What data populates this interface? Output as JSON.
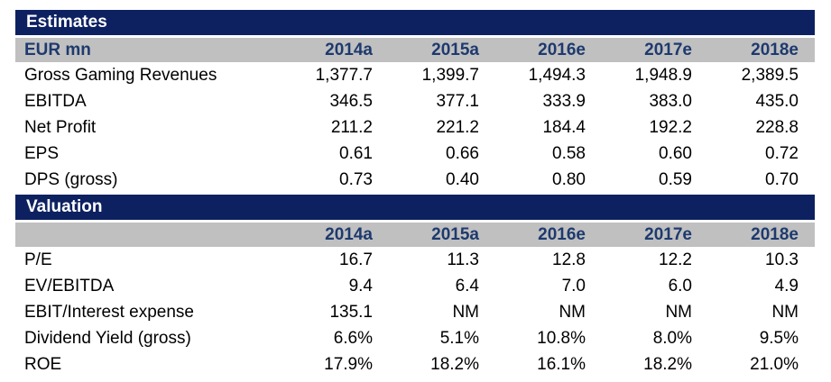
{
  "colors": {
    "section_bar_bg": "#0d2161",
    "section_bar_text": "#ffffff",
    "column_header_bg": "#c0c0c0",
    "column_header_text": "#1e3a6e",
    "body_text": "#000000"
  },
  "estimates": {
    "title": "Estimates",
    "unit_label": "EUR mn",
    "columns": [
      "2014a",
      "2015a",
      "2016e",
      "2017e",
      "2018e"
    ],
    "rows": [
      {
        "label": "Gross Gaming Revenues",
        "values": [
          "1,377.7",
          "1,399.7",
          "1,494.3",
          "1,948.9",
          "2,389.5"
        ]
      },
      {
        "label": "EBITDA",
        "values": [
          "346.5",
          "377.1",
          "333.9",
          "383.0",
          "435.0"
        ]
      },
      {
        "label": "Net Profit",
        "values": [
          "211.2",
          "221.2",
          "184.4",
          "192.2",
          "228.8"
        ]
      },
      {
        "label": "EPS",
        "values": [
          "0.61",
          "0.66",
          "0.58",
          "0.60",
          "0.72"
        ]
      },
      {
        "label": "DPS (gross)",
        "values": [
          "0.73",
          "0.40",
          "0.80",
          "0.59",
          "0.70"
        ]
      }
    ]
  },
  "valuation": {
    "title": "Valuation",
    "unit_label": "",
    "columns": [
      "2014a",
      "2015a",
      "2016e",
      "2017e",
      "2018e"
    ],
    "rows": [
      {
        "label": "P/E",
        "values": [
          "16.7",
          "11.3",
          "12.8",
          "12.2",
          "10.3"
        ]
      },
      {
        "label": "EV/EBITDA",
        "values": [
          "9.4",
          "6.4",
          "7.0",
          "6.0",
          "4.9"
        ]
      },
      {
        "label": "EBIT/Interest expense",
        "values": [
          "135.1",
          "NM",
          "NM",
          "NM",
          "NM"
        ]
      },
      {
        "label": "Dividend Yield (gross)",
        "values": [
          "6.6%",
          "5.1%",
          "10.8%",
          "8.0%",
          "9.5%"
        ]
      },
      {
        "label": "ROE",
        "values": [
          "17.9%",
          "18.2%",
          "16.1%",
          "18.2%",
          "21.0%"
        ]
      }
    ]
  }
}
